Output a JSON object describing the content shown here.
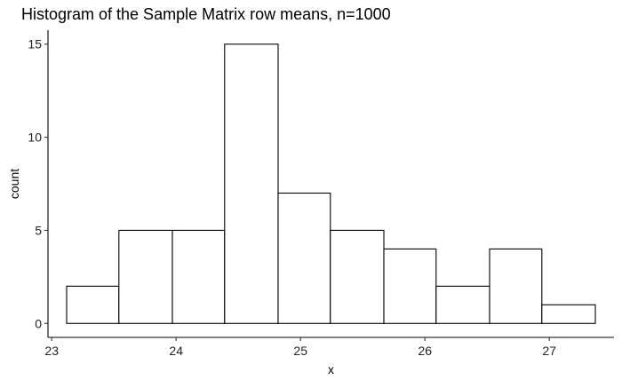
{
  "chart_data": {
    "type": "bar",
    "title": "Histogram of the Sample Matrix row means, n=1000",
    "xlabel": "x",
    "ylabel": "count",
    "bins": [
      {
        "x0": 23.12,
        "x1": 23.54,
        "count": 2
      },
      {
        "x0": 23.54,
        "x1": 23.97,
        "count": 5
      },
      {
        "x0": 23.97,
        "x1": 24.39,
        "count": 5
      },
      {
        "x0": 24.39,
        "x1": 24.82,
        "count": 15
      },
      {
        "x0": 24.82,
        "x1": 25.24,
        "count": 7
      },
      {
        "x0": 25.24,
        "x1": 25.67,
        "count": 5
      },
      {
        "x0": 25.67,
        "x1": 26.09,
        "count": 4
      },
      {
        "x0": 26.09,
        "x1": 26.52,
        "count": 2
      },
      {
        "x0": 26.52,
        "x1": 26.94,
        "count": 4
      },
      {
        "x0": 26.94,
        "x1": 27.37,
        "count": 1
      }
    ],
    "xlim": [
      22.97,
      27.52
    ],
    "ylim": [
      -0.75,
      15.75
    ],
    "xticks": [
      23,
      24,
      25,
      26,
      27
    ],
    "yticks": [
      0,
      5,
      10,
      15
    ],
    "grid": false,
    "bar_fill": "#ffffff",
    "bar_stroke": "#000000"
  }
}
